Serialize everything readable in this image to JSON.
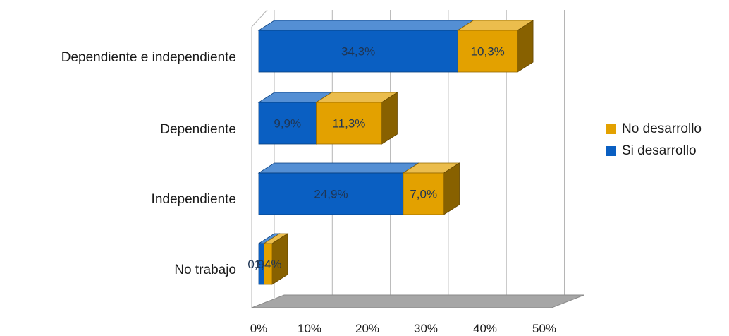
{
  "chart_data": {
    "type": "bar",
    "orientation": "horizontal",
    "stacked": true,
    "three_d": true,
    "categories": [
      "Dependiente e independiente",
      "Dependiente",
      "Independiente",
      "No trabajo"
    ],
    "series": [
      {
        "name": "Si desarrollo",
        "color": "#0a5fc2",
        "values": [
          34.3,
          9.9,
          24.9,
          0.9
        ],
        "labels": [
          "34,3%",
          "9,9%",
          "24,9%",
          "0,9%"
        ]
      },
      {
        "name": "No desarrollo",
        "color": "#e3a100",
        "values": [
          10.3,
          11.3,
          7.0,
          1.4
        ],
        "labels": [
          "10,3%",
          "11,3%",
          "7,0%",
          "1,4%"
        ]
      }
    ],
    "xlim": [
      0,
      50
    ],
    "x_ticks": [
      "0%",
      "10%",
      "20%",
      "30%",
      "40%",
      "50%"
    ],
    "grid": true,
    "legend_position": "right",
    "legend": [
      {
        "name": "No desarrollo",
        "color": "#e3a100"
      },
      {
        "name": "Si desarrollo",
        "color": "#0a5fc2"
      }
    ],
    "floor_color": "#a6a6a6"
  }
}
